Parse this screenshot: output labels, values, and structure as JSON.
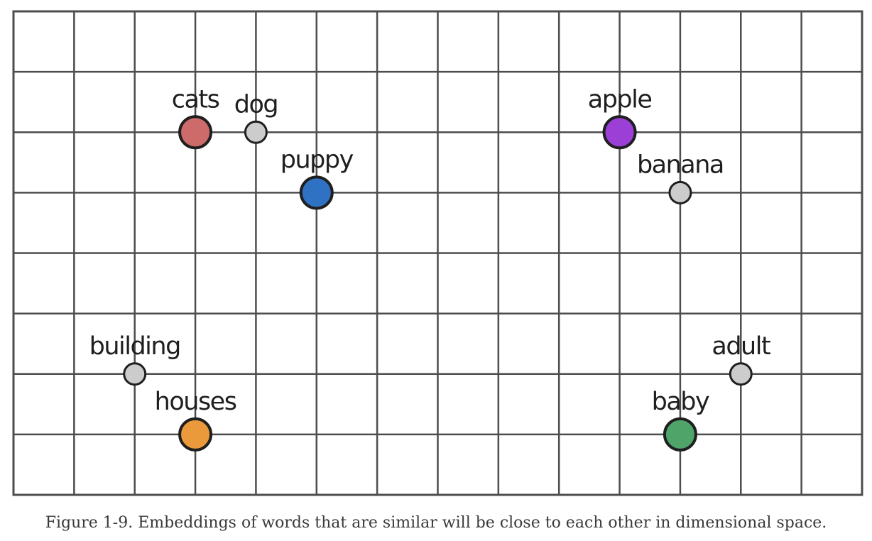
{
  "grid": {
    "columns": 14,
    "rows": 8,
    "line_color": "#4d4d4d"
  },
  "points": [
    {
      "label": "cats",
      "col": 3,
      "row": 2,
      "size": "large",
      "color": "#cd6b6b"
    },
    {
      "label": "dog",
      "col": 4,
      "row": 2,
      "size": "small",
      "color": "#cccccc"
    },
    {
      "label": "puppy",
      "col": 5,
      "row": 3,
      "size": "large",
      "color": "#2f72c4"
    },
    {
      "label": "apple",
      "col": 10,
      "row": 2,
      "size": "large",
      "color": "#9b3fd6"
    },
    {
      "label": "banana",
      "col": 11,
      "row": 3,
      "size": "small",
      "color": "#cccccc"
    },
    {
      "label": "building",
      "col": 2,
      "row": 6,
      "size": "small",
      "color": "#cccccc"
    },
    {
      "label": "houses",
      "col": 3,
      "row": 7,
      "size": "large",
      "color": "#ea9a3a"
    },
    {
      "label": "adult",
      "col": 12,
      "row": 6,
      "size": "small",
      "color": "#cccccc"
    },
    {
      "label": "baby",
      "col": 11,
      "row": 7,
      "size": "large",
      "color": "#4fa46a"
    }
  ],
  "caption": "Figure 1-9. Embeddings of words that are similar will be close to each other in dimensional space."
}
